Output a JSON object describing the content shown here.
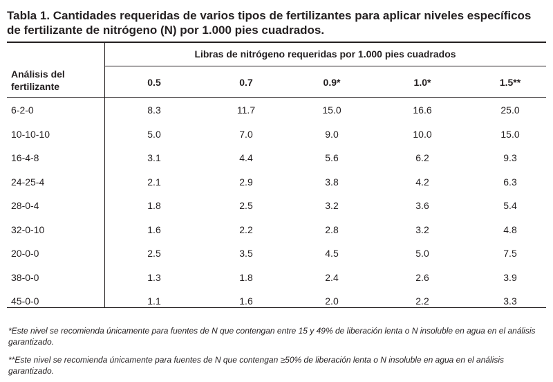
{
  "title": {
    "lead": "Tabla 1.",
    "text": " Cantidades requeridas de varios tipos de fertilizantes para aplicar niveles específicos de fertilizante de nitrógeno (N) por 1.000 pies cuadrados."
  },
  "table": {
    "row_header": "Análisis del fertilizante",
    "group_header": "Libras de nitrógeno requeridas por 1.000 pies cuadrados",
    "columns": [
      "0.5",
      "0.7",
      "0.9*",
      "1.0*",
      "1.5**"
    ],
    "rows": [
      {
        "analysis": "6-2-0",
        "values": [
          "8.3",
          "11.7",
          "15.0",
          "16.6",
          "25.0"
        ]
      },
      {
        "analysis": "10-10-10",
        "values": [
          "5.0",
          "7.0",
          "9.0",
          "10.0",
          "15.0"
        ]
      },
      {
        "analysis": "16-4-8",
        "values": [
          "3.1",
          "4.4",
          "5.6",
          "6.2",
          "9.3"
        ]
      },
      {
        "analysis": "24-25-4",
        "values": [
          "2.1",
          "2.9",
          "3.8",
          "4.2",
          "6.3"
        ]
      },
      {
        "analysis": "28-0-4",
        "values": [
          "1.8",
          "2.5",
          "3.2",
          "3.6",
          "5.4"
        ]
      },
      {
        "analysis": "32-0-10",
        "values": [
          "1.6",
          "2.2",
          "2.8",
          "3.2",
          "4.8"
        ]
      },
      {
        "analysis": "20-0-0",
        "values": [
          "2.5",
          "3.5",
          "4.5",
          "5.0",
          "7.5"
        ]
      },
      {
        "analysis": "38-0-0",
        "values": [
          "1.3",
          "1.8",
          "2.4",
          "2.6",
          "3.9"
        ]
      },
      {
        "analysis": "45-0-0",
        "values": [
          "1.1",
          "1.6",
          "2.0",
          "2.2",
          "3.3"
        ]
      }
    ]
  },
  "footnotes": [
    "*Este nivel se recomienda únicamente para fuentes de N que contengan entre 15 y 49% de liberación lenta o N insoluble en agua en el análisis garantizado.",
    "**Este nivel se recomienda únicamente para fuentes de N que contengan ≥50% de liberación lenta o N insoluble en agua en el análisis garantizado."
  ]
}
